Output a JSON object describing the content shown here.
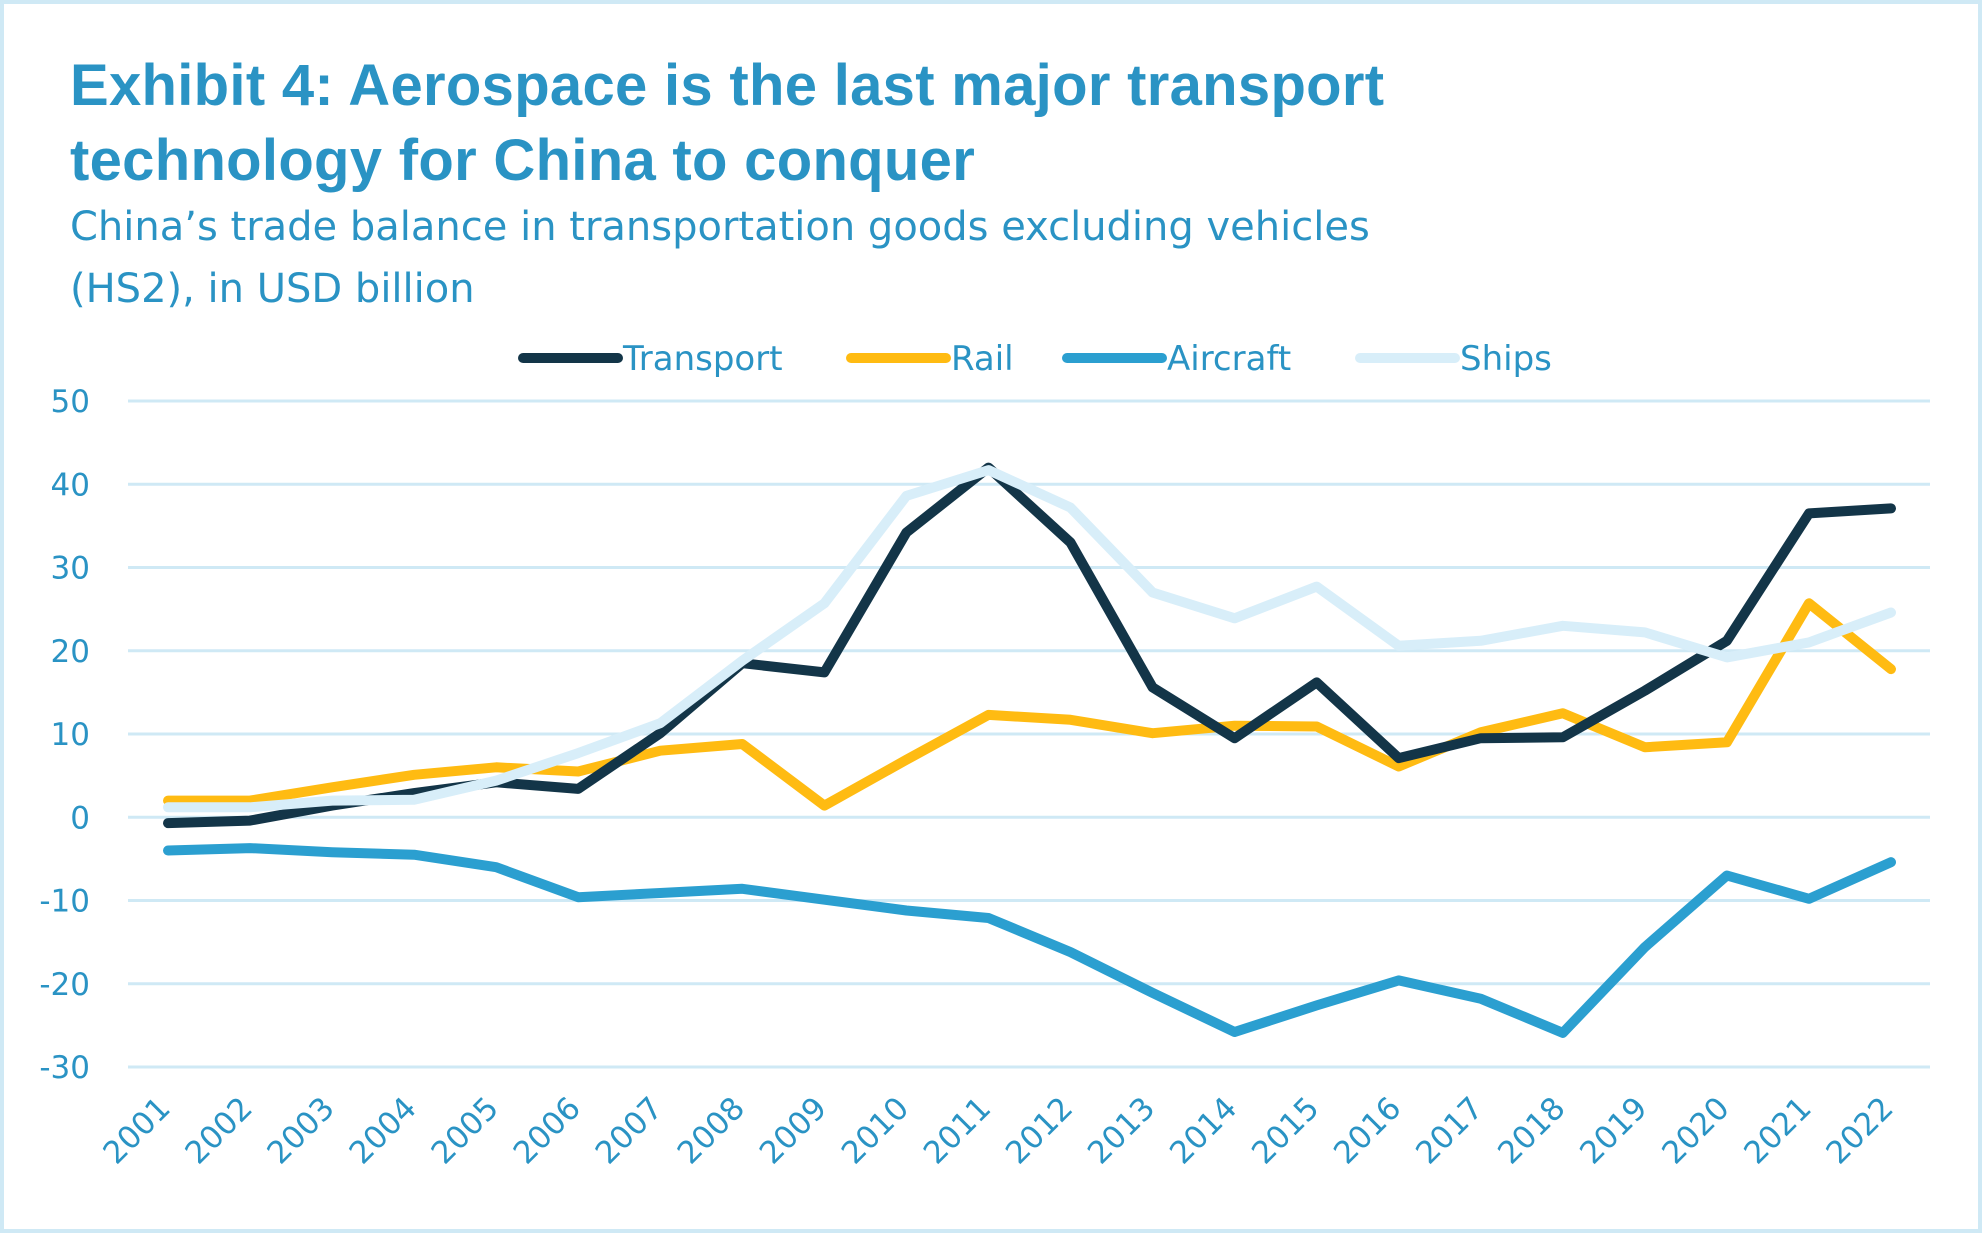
{
  "header": {
    "title_lines": [
      "Exhibit 4: Aerospace is the last major transport",
      "technology for China to conquer"
    ],
    "subtitle_lines": [
      "China’s trade balance in transportation goods excluding vehicles",
      "(HS2), in USD billion"
    ]
  },
  "colors": {
    "text": "#2a93c4",
    "grid": "#cfe9f5",
    "frame": "#cfe9f5"
  },
  "chart_data": {
    "type": "line",
    "title": "Exhibit 4: Aerospace is the last major transport technology for China to conquer",
    "subtitle": "China’s trade balance in transportation goods excluding vehicles (HS2), in USD billion",
    "xlabel": "",
    "ylabel": "",
    "ylim": [
      -30,
      50
    ],
    "yticks": [
      50,
      40,
      30,
      20,
      10,
      0,
      -10,
      -20,
      -30
    ],
    "grid": true,
    "legend_position": "top-center",
    "x": [
      "2001",
      "2002",
      "2003",
      "2004",
      "2005",
      "2006",
      "2007",
      "2008",
      "2009",
      "2010",
      "2011",
      "2012",
      "2013",
      "2014",
      "2015",
      "2016",
      "2017",
      "2018",
      "2019",
      "2020",
      "2021",
      "2022"
    ],
    "series": [
      {
        "name": "Transport",
        "color": "#133548",
        "values": [
          -0.7,
          -0.4,
          1.4,
          2.9,
          4.2,
          3.4,
          10.1,
          18.5,
          17.4,
          34.2,
          42.0,
          33.0,
          15.6,
          9.5,
          16.2,
          7.1,
          9.5,
          9.6,
          15.2,
          21.2,
          36.5,
          37.1
        ]
      },
      {
        "name": "Rail",
        "color": "#ffbb12",
        "values": [
          2.0,
          2.0,
          3.6,
          5.1,
          6.0,
          5.5,
          8.0,
          8.8,
          1.4,
          6.9,
          12.3,
          11.7,
          10.1,
          11.0,
          10.9,
          6.1,
          10.2,
          12.5,
          8.4,
          9.0,
          25.7,
          17.8
        ]
      },
      {
        "name": "Aircraft",
        "color": "#2b9fd0",
        "values": [
          -4.0,
          -3.7,
          -4.2,
          -4.5,
          -6.0,
          -9.6,
          -9.1,
          -8.6,
          -9.9,
          -11.2,
          -12.1,
          -16.2,
          -21.1,
          -25.8,
          -22.6,
          -19.6,
          -21.8,
          -25.9,
          -15.6,
          -7.0,
          -9.8,
          -5.4
        ]
      },
      {
        "name": "Ships",
        "color": "#d8eef9",
        "values": [
          1.2,
          1.2,
          2.0,
          2.1,
          4.4,
          7.7,
          11.3,
          18.8,
          25.7,
          38.6,
          41.7,
          37.2,
          27.0,
          23.9,
          27.7,
          20.6,
          21.2,
          23.0,
          22.2,
          19.2,
          21.0,
          24.6
        ]
      }
    ]
  }
}
